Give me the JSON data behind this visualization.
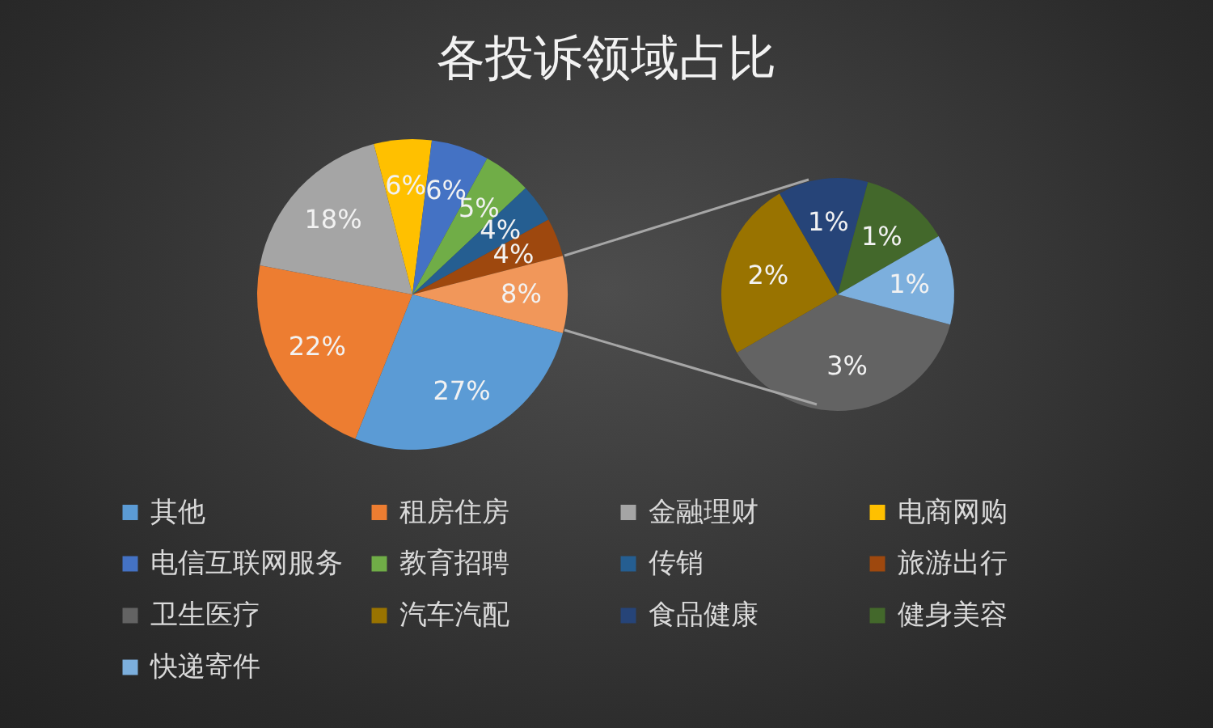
{
  "chart_data": [
    {
      "type": "pie",
      "title": "各投诉领域占比",
      "categories": [
        "其他",
        "租房住房",
        "金融理财",
        "电商网购",
        "电信互联网服务",
        "教育招聘",
        "传销",
        "旅游出行",
        null
      ],
      "values": [
        27,
        22,
        18,
        6,
        6,
        5,
        4,
        4,
        8
      ],
      "colors": [
        "#5b9bd5",
        "#ed7d31",
        "#a5a5a5",
        "#ffc000",
        "#4472c4",
        "#70ad47",
        "#255e91",
        "#9e480e",
        "#f1975a"
      ],
      "value_labels": [
        "27%",
        "22%",
        "18%",
        "6%",
        "6%",
        "5%",
        "4%",
        "4%",
        "8%"
      ],
      "legend": "bottom"
    },
    {
      "type": "pie",
      "categories": [
        "卫生医疗",
        "汽车汽配",
        "食品健康",
        "健身美容",
        "快递寄件"
      ],
      "values": [
        3,
        2,
        1,
        1,
        1
      ],
      "colors": [
        "#636363",
        "#997300",
        "#264478",
        "#43682b",
        "#7cafdd"
      ],
      "value_labels": [
        "3%",
        "2%",
        "1%",
        "1%",
        "1%"
      ],
      "legend": "bottom"
    }
  ]
}
